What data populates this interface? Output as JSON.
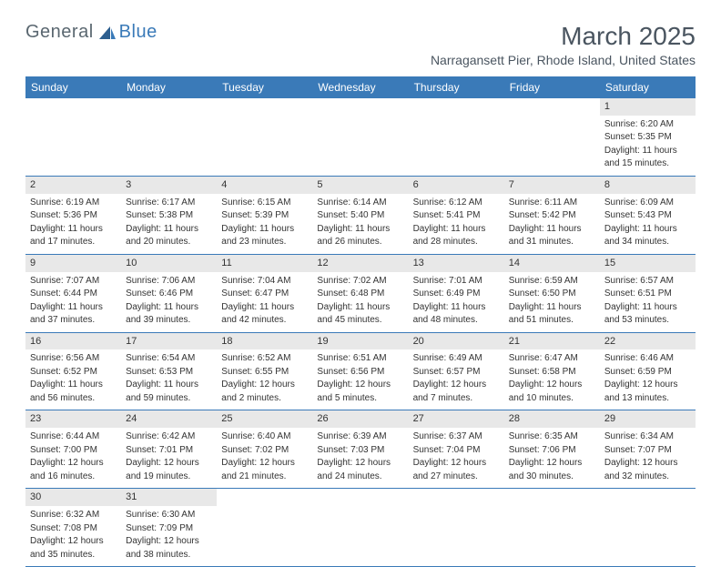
{
  "logo": {
    "text1": "General",
    "text2": "Blue"
  },
  "title": "March 2025",
  "location": "Narragansett Pier, Rhode Island, United States",
  "colors": {
    "header_bg": "#3a7ab8",
    "header_text": "#ffffff",
    "daynum_bg": "#e8e8e8",
    "text": "#333333",
    "title": "#4a5560",
    "border": "#3a7ab8"
  },
  "day_names": [
    "Sunday",
    "Monday",
    "Tuesday",
    "Wednesday",
    "Thursday",
    "Friday",
    "Saturday"
  ],
  "weeks": [
    [
      null,
      null,
      null,
      null,
      null,
      null,
      {
        "n": "1",
        "sr": "Sunrise: 6:20 AM",
        "ss": "Sunset: 5:35 PM",
        "d1": "Daylight: 11 hours",
        "d2": "and 15 minutes."
      }
    ],
    [
      {
        "n": "2",
        "sr": "Sunrise: 6:19 AM",
        "ss": "Sunset: 5:36 PM",
        "d1": "Daylight: 11 hours",
        "d2": "and 17 minutes."
      },
      {
        "n": "3",
        "sr": "Sunrise: 6:17 AM",
        "ss": "Sunset: 5:38 PM",
        "d1": "Daylight: 11 hours",
        "d2": "and 20 minutes."
      },
      {
        "n": "4",
        "sr": "Sunrise: 6:15 AM",
        "ss": "Sunset: 5:39 PM",
        "d1": "Daylight: 11 hours",
        "d2": "and 23 minutes."
      },
      {
        "n": "5",
        "sr": "Sunrise: 6:14 AM",
        "ss": "Sunset: 5:40 PM",
        "d1": "Daylight: 11 hours",
        "d2": "and 26 minutes."
      },
      {
        "n": "6",
        "sr": "Sunrise: 6:12 AM",
        "ss": "Sunset: 5:41 PM",
        "d1": "Daylight: 11 hours",
        "d2": "and 28 minutes."
      },
      {
        "n": "7",
        "sr": "Sunrise: 6:11 AM",
        "ss": "Sunset: 5:42 PM",
        "d1": "Daylight: 11 hours",
        "d2": "and 31 minutes."
      },
      {
        "n": "8",
        "sr": "Sunrise: 6:09 AM",
        "ss": "Sunset: 5:43 PM",
        "d1": "Daylight: 11 hours",
        "d2": "and 34 minutes."
      }
    ],
    [
      {
        "n": "9",
        "sr": "Sunrise: 7:07 AM",
        "ss": "Sunset: 6:44 PM",
        "d1": "Daylight: 11 hours",
        "d2": "and 37 minutes."
      },
      {
        "n": "10",
        "sr": "Sunrise: 7:06 AM",
        "ss": "Sunset: 6:46 PM",
        "d1": "Daylight: 11 hours",
        "d2": "and 39 minutes."
      },
      {
        "n": "11",
        "sr": "Sunrise: 7:04 AM",
        "ss": "Sunset: 6:47 PM",
        "d1": "Daylight: 11 hours",
        "d2": "and 42 minutes."
      },
      {
        "n": "12",
        "sr": "Sunrise: 7:02 AM",
        "ss": "Sunset: 6:48 PM",
        "d1": "Daylight: 11 hours",
        "d2": "and 45 minutes."
      },
      {
        "n": "13",
        "sr": "Sunrise: 7:01 AM",
        "ss": "Sunset: 6:49 PM",
        "d1": "Daylight: 11 hours",
        "d2": "and 48 minutes."
      },
      {
        "n": "14",
        "sr": "Sunrise: 6:59 AM",
        "ss": "Sunset: 6:50 PM",
        "d1": "Daylight: 11 hours",
        "d2": "and 51 minutes."
      },
      {
        "n": "15",
        "sr": "Sunrise: 6:57 AM",
        "ss": "Sunset: 6:51 PM",
        "d1": "Daylight: 11 hours",
        "d2": "and 53 minutes."
      }
    ],
    [
      {
        "n": "16",
        "sr": "Sunrise: 6:56 AM",
        "ss": "Sunset: 6:52 PM",
        "d1": "Daylight: 11 hours",
        "d2": "and 56 minutes."
      },
      {
        "n": "17",
        "sr": "Sunrise: 6:54 AM",
        "ss": "Sunset: 6:53 PM",
        "d1": "Daylight: 11 hours",
        "d2": "and 59 minutes."
      },
      {
        "n": "18",
        "sr": "Sunrise: 6:52 AM",
        "ss": "Sunset: 6:55 PM",
        "d1": "Daylight: 12 hours",
        "d2": "and 2 minutes."
      },
      {
        "n": "19",
        "sr": "Sunrise: 6:51 AM",
        "ss": "Sunset: 6:56 PM",
        "d1": "Daylight: 12 hours",
        "d2": "and 5 minutes."
      },
      {
        "n": "20",
        "sr": "Sunrise: 6:49 AM",
        "ss": "Sunset: 6:57 PM",
        "d1": "Daylight: 12 hours",
        "d2": "and 7 minutes."
      },
      {
        "n": "21",
        "sr": "Sunrise: 6:47 AM",
        "ss": "Sunset: 6:58 PM",
        "d1": "Daylight: 12 hours",
        "d2": "and 10 minutes."
      },
      {
        "n": "22",
        "sr": "Sunrise: 6:46 AM",
        "ss": "Sunset: 6:59 PM",
        "d1": "Daylight: 12 hours",
        "d2": "and 13 minutes."
      }
    ],
    [
      {
        "n": "23",
        "sr": "Sunrise: 6:44 AM",
        "ss": "Sunset: 7:00 PM",
        "d1": "Daylight: 12 hours",
        "d2": "and 16 minutes."
      },
      {
        "n": "24",
        "sr": "Sunrise: 6:42 AM",
        "ss": "Sunset: 7:01 PM",
        "d1": "Daylight: 12 hours",
        "d2": "and 19 minutes."
      },
      {
        "n": "25",
        "sr": "Sunrise: 6:40 AM",
        "ss": "Sunset: 7:02 PM",
        "d1": "Daylight: 12 hours",
        "d2": "and 21 minutes."
      },
      {
        "n": "26",
        "sr": "Sunrise: 6:39 AM",
        "ss": "Sunset: 7:03 PM",
        "d1": "Daylight: 12 hours",
        "d2": "and 24 minutes."
      },
      {
        "n": "27",
        "sr": "Sunrise: 6:37 AM",
        "ss": "Sunset: 7:04 PM",
        "d1": "Daylight: 12 hours",
        "d2": "and 27 minutes."
      },
      {
        "n": "28",
        "sr": "Sunrise: 6:35 AM",
        "ss": "Sunset: 7:06 PM",
        "d1": "Daylight: 12 hours",
        "d2": "and 30 minutes."
      },
      {
        "n": "29",
        "sr": "Sunrise: 6:34 AM",
        "ss": "Sunset: 7:07 PM",
        "d1": "Daylight: 12 hours",
        "d2": "and 32 minutes."
      }
    ],
    [
      {
        "n": "30",
        "sr": "Sunrise: 6:32 AM",
        "ss": "Sunset: 7:08 PM",
        "d1": "Daylight: 12 hours",
        "d2": "and 35 minutes."
      },
      {
        "n": "31",
        "sr": "Sunrise: 6:30 AM",
        "ss": "Sunset: 7:09 PM",
        "d1": "Daylight: 12 hours",
        "d2": "and 38 minutes."
      },
      null,
      null,
      null,
      null,
      null
    ]
  ]
}
